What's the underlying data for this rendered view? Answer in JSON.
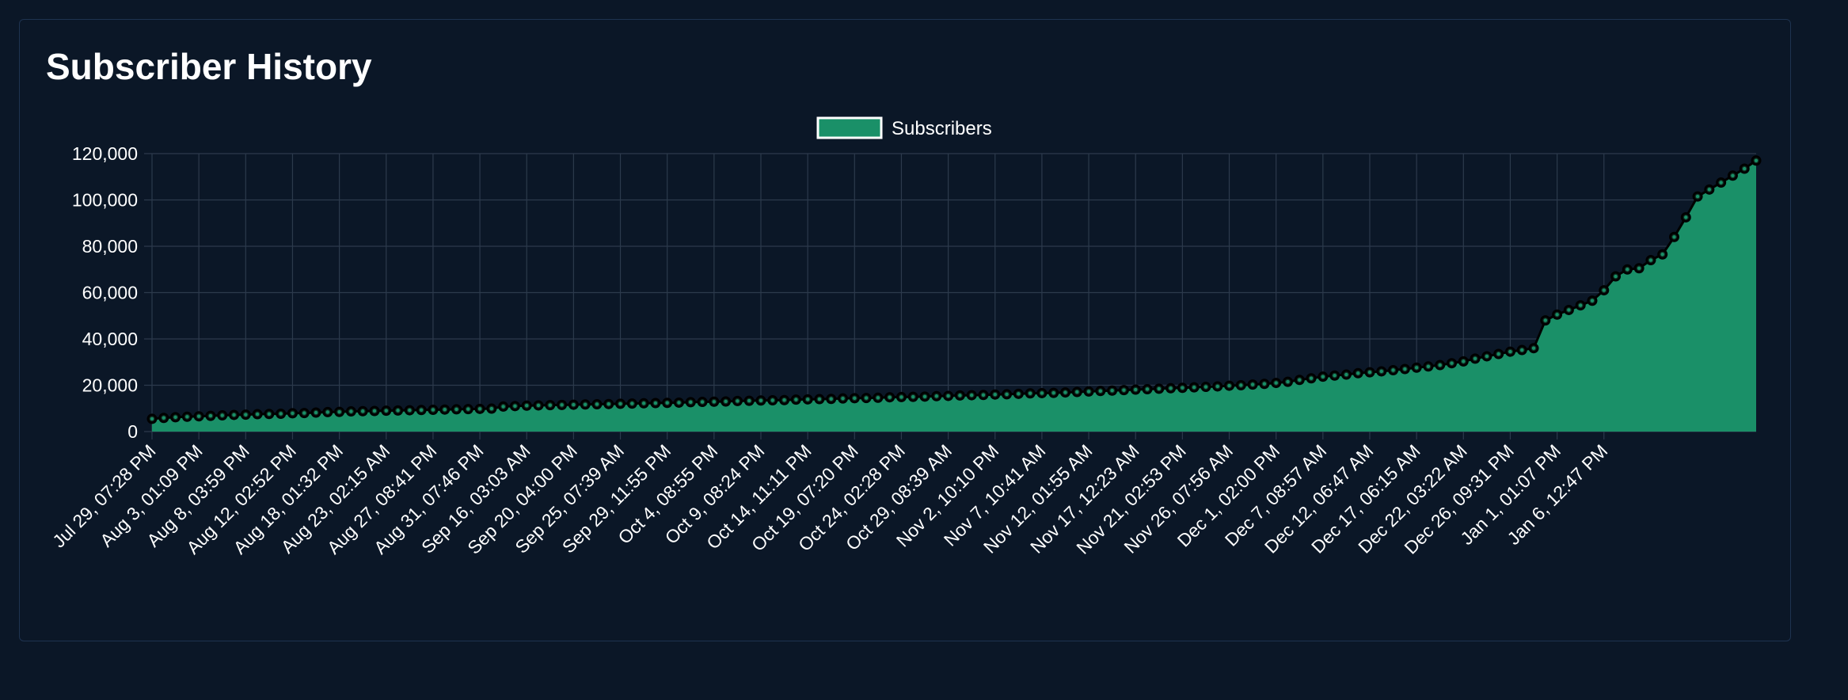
{
  "card": {
    "title": "Subscriber History"
  },
  "colors": {
    "background": "#0b1727",
    "card_border": "#1e3350",
    "fill": "#1a9068",
    "line": "#000000",
    "point_stroke": "#1a9068",
    "grid": "#2c3a4c",
    "text": "#ffffff",
    "legend_border": "#ffffff"
  },
  "chart_data": {
    "type": "area",
    "title": "",
    "xlabel": "",
    "ylabel": "",
    "ylim": [
      0,
      120000
    ],
    "yticks": [
      0,
      20000,
      40000,
      60000,
      80000,
      100000,
      120000
    ],
    "ytick_labels": [
      "0",
      "20,000",
      "40,000",
      "60,000",
      "80,000",
      "100,000",
      "120,000"
    ],
    "grid": true,
    "legend": {
      "position": "top-center"
    },
    "x_tick_labels": [
      "Jul 29, 07:28 PM",
      "Aug 3, 01:09 PM",
      "Aug 8, 03:59 PM",
      "Aug 12, 02:52 PM",
      "Aug 18, 01:32 PM",
      "Aug 23, 02:15 AM",
      "Aug 27, 08:41 PM",
      "Aug 31, 07:46 PM",
      "Sep 16, 03:03 AM",
      "Sep 20, 04:00 PM",
      "Sep 25, 07:39 AM",
      "Sep 29, 11:55 PM",
      "Oct 4, 08:55 PM",
      "Oct 9, 08:24 PM",
      "Oct 14, 11:11 PM",
      "Oct 19, 07:20 PM",
      "Oct 24, 02:28 PM",
      "Oct 29, 08:39 AM",
      "Nov 2, 10:10 PM",
      "Nov 7, 10:41 AM",
      "Nov 12, 01:55 AM",
      "Nov 17, 12:23 AM",
      "Nov 21, 02:53 PM",
      "Nov 26, 07:56 AM",
      "Dec 1, 02:00 PM",
      "Dec 7, 08:57 AM",
      "Dec 12, 06:47 AM",
      "Dec 17, 06:15 AM",
      "Dec 22, 03:22 AM",
      "Dec 26, 09:31 PM",
      "Jan 1, 01:07 PM",
      "Jan 6, 12:47 PM"
    ],
    "series": [
      {
        "name": "Subscribers",
        "values": [
          5500,
          5900,
          6200,
          6400,
          6600,
          6800,
          7000,
          7200,
          7300,
          7500,
          7600,
          7700,
          7900,
          8000,
          8200,
          8400,
          8500,
          8700,
          8800,
          8900,
          9000,
          9100,
          9200,
          9300,
          9400,
          9500,
          9600,
          9700,
          9800,
          9900,
          10800,
          11000,
          11200,
          11300,
          11400,
          11500,
          11600,
          11700,
          11800,
          11900,
          12000,
          12100,
          12200,
          12300,
          12400,
          12500,
          12700,
          12800,
          12900,
          13000,
          13200,
          13300,
          13400,
          13500,
          13600,
          13800,
          13900,
          14000,
          14100,
          14300,
          14400,
          14500,
          14600,
          14800,
          14900,
          15000,
          15100,
          15300,
          15400,
          15600,
          15700,
          15800,
          16000,
          16100,
          16300,
          16500,
          16600,
          16700,
          16900,
          17100,
          17300,
          17500,
          17700,
          17900,
          18100,
          18300,
          18500,
          18700,
          18900,
          19100,
          19300,
          19500,
          19800,
          20000,
          20300,
          20600,
          21000,
          21500,
          22300,
          23000,
          23700,
          24200,
          24600,
          25200,
          25600,
          26000,
          26500,
          27000,
          27600,
          28100,
          28700,
          29500,
          30300,
          31500,
          32500,
          33500,
          34500,
          35200,
          36000,
          48000,
          50500,
          52500,
          54500,
          56500,
          61000,
          67000,
          70000,
          70500,
          74000,
          76500,
          84000,
          92500,
          101500,
          104500,
          107500,
          110500,
          113500,
          117000
        ]
      }
    ]
  }
}
